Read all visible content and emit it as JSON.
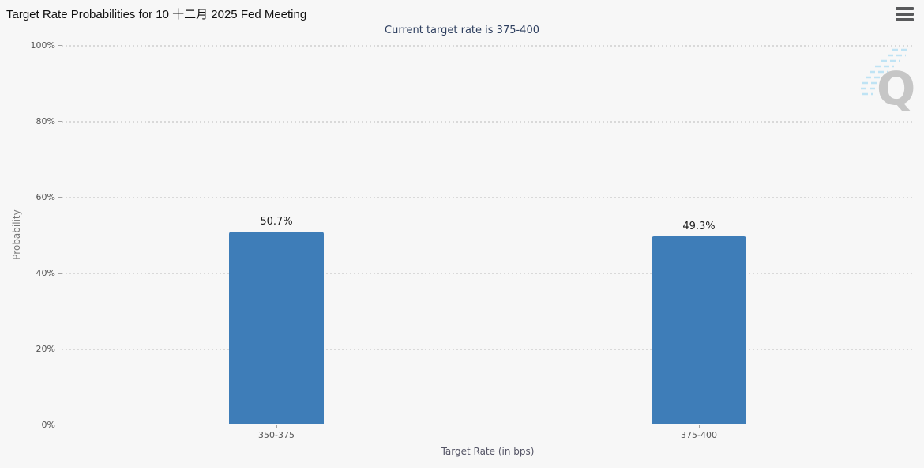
{
  "header": {
    "title": "Target Rate Probabilities for 10 十二月 2025 Fed Meeting",
    "menu_icon": "hamburger-menu-icon"
  },
  "subtitle": "Current target rate is 375-400",
  "chart_data": {
    "type": "bar",
    "title": "Target Rate Probabilities for 10 十二月 2025 Fed Meeting",
    "subtitle": "Current target rate is 375-400",
    "categories": [
      "350-375",
      "375-400"
    ],
    "values": [
      50.7,
      49.3
    ],
    "value_labels": [
      "50.7%",
      "49.3%"
    ],
    "xlabel": "Target Rate (in bps)",
    "ylabel": "Probability",
    "ylim": [
      0,
      100
    ],
    "ytick_labels": [
      "100%",
      "80%",
      "60%",
      "40%",
      "20%",
      "0%"
    ],
    "grid": "horizontal-dotted",
    "legend_position": "none",
    "bar_color": "#3e7db8"
  },
  "watermark": {
    "letter": "Q"
  },
  "colors": {
    "background": "#f7f7f7",
    "subtitle_text": "#2e3f5f",
    "axis_text": "#555555",
    "bar": "#3e7db8"
  }
}
